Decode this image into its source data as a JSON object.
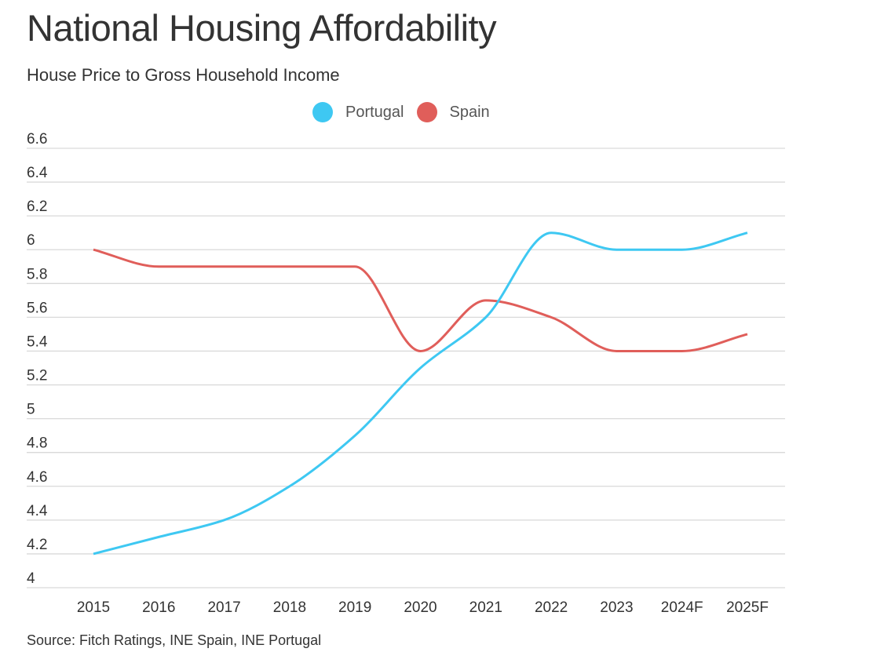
{
  "header": {
    "title": "National Housing Affordability",
    "subtitle": "House Price to Gross Household Income"
  },
  "legend": [
    {
      "name": "Portugal",
      "color": "#3ec8f2"
    },
    {
      "name": "Spain",
      "color": "#e05e5a"
    }
  ],
  "footer": {
    "source": "Source: Fitch Ratings, INE Spain, INE Portugal"
  },
  "chart_data": {
    "type": "line",
    "title": "National Housing Affordability",
    "subtitle": "House Price to Gross Household Income",
    "xlabel": "",
    "ylabel": "",
    "categories": [
      "2015",
      "2016",
      "2017",
      "2018",
      "2019",
      "2020",
      "2021",
      "2022",
      "2023",
      "2024F",
      "2025F"
    ],
    "series": [
      {
        "name": "Portugal",
        "color": "#3ec8f2",
        "values": [
          4.2,
          4.3,
          4.4,
          4.6,
          4.9,
          5.3,
          5.6,
          6.1,
          6.0,
          6.0,
          6.1
        ]
      },
      {
        "name": "Spain",
        "color": "#e05e5a",
        "values": [
          6.0,
          5.9,
          5.9,
          5.9,
          5.9,
          5.4,
          5.7,
          5.6,
          5.4,
          5.4,
          5.5
        ]
      }
    ],
    "ylim": [
      4,
      6.6
    ],
    "yticks": [
      "4",
      "4.2",
      "4.4",
      "4.6",
      "4.8",
      "5",
      "5.2",
      "5.4",
      "5.6",
      "5.8",
      "6",
      "6.2",
      "6.4",
      "6.6"
    ],
    "grid": true,
    "legend_position": "top-center",
    "line_style": "smooth",
    "source": "Source: Fitch Ratings, INE Spain, INE Portugal"
  }
}
